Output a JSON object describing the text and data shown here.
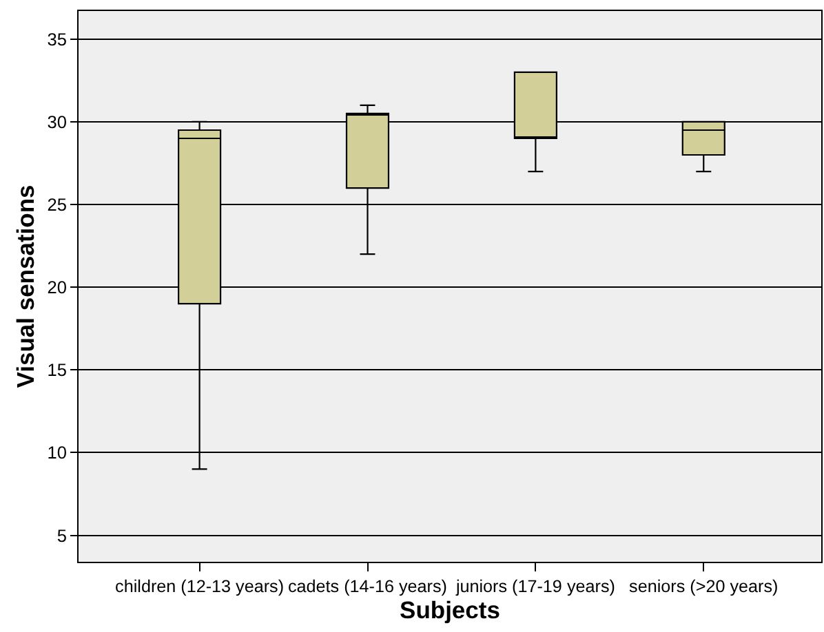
{
  "chart_data": {
    "type": "box",
    "xlabel": "Subjects",
    "ylabel": "Visual sensations",
    "categories": [
      "children (12-13 years)",
      "cadets (14-16 years)",
      "juniors (17-19 years)",
      "seniors (>20 years)"
    ],
    "color": "#d3cf99",
    "boxes": [
      {
        "low": 9,
        "q1": 19,
        "median": 29,
        "q3": 29.5,
        "high": 30
      },
      {
        "low": 22,
        "q1": 26,
        "median": 30.5,
        "q3": 30.5,
        "high": 31
      },
      {
        "low": 27,
        "q1": 29,
        "median": 29,
        "q3": 33,
        "high": 33
      },
      {
        "low": 27,
        "q1": 28,
        "median": 29.5,
        "q3": 30,
        "high": 30
      }
    ],
    "ylim": [
      3.4,
      36.7
    ],
    "yticks": [
      5,
      10,
      15,
      20,
      25,
      30,
      35
    ],
    "grid": "y"
  }
}
